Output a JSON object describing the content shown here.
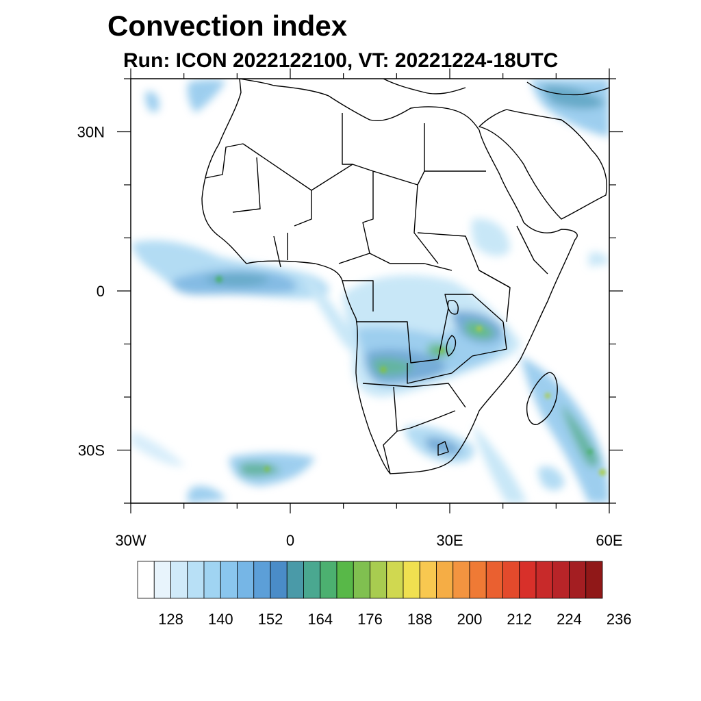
{
  "title": "Convection index",
  "subtitle": "Run: ICON 2022122100,  VT: 20221224-18UTC",
  "map": {
    "lon_range": [
      -30,
      60
    ],
    "lat_range": [
      -40,
      40
    ],
    "x_tick_labels": [
      {
        "lon": -30,
        "label": "30W"
      },
      {
        "lon": 0,
        "label": "0"
      },
      {
        "lon": 30,
        "label": "30E"
      },
      {
        "lon": 60,
        "label": "60E"
      }
    ],
    "y_tick_labels": [
      {
        "lat": 30,
        "label": "30N"
      },
      {
        "lat": 0,
        "label": "0"
      },
      {
        "lat": -30,
        "label": "30S"
      }
    ]
  },
  "colorbar": {
    "colors": [
      "#ffffff",
      "#e8f4fc",
      "#d0eaf9",
      "#b8e0f6",
      "#a0d4f2",
      "#8ac6ee",
      "#76b6e6",
      "#5c9fd8",
      "#4a8cc8",
      "#4a9aa8",
      "#4aa890",
      "#4cb070",
      "#58b848",
      "#80c050",
      "#a8cc50",
      "#d0d850",
      "#f0e050",
      "#f8c850",
      "#f5ad45",
      "#f39440",
      "#ef7a35",
      "#ea6030",
      "#e34a2c",
      "#d8302a",
      "#c82a2a",
      "#b82428",
      "#a41e22",
      "#901818"
    ],
    "labels": [
      "128",
      "140",
      "152",
      "164",
      "176",
      "188",
      "200",
      "212",
      "224",
      "236"
    ],
    "label_start_boundary": 2,
    "label_every": 3
  }
}
